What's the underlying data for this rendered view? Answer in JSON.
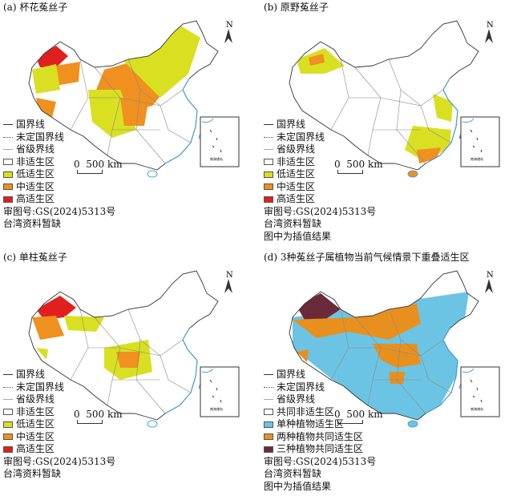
{
  "panels": [
    {
      "title": "(a) 杯花菟丝子",
      "legend": [
        "国界线",
        "未定国界线",
        "省级界线",
        "非适生区",
        "低适生区",
        "中适生区",
        "高适生区"
      ],
      "notes": [
        "审图号:GS(2024)5313号",
        "台湾资料暂缺"
      ]
    },
    {
      "title": "(b) 原野菟丝子",
      "legend": [
        "国界线",
        "未定国界线",
        "省级界线",
        "非适生区",
        "低适生区",
        "中适生区",
        "高适生区"
      ],
      "notes": [
        "审图号:GS(2024)5313号",
        "台湾资料暂缺",
        "图中为插值结果"
      ]
    },
    {
      "title": "(c) 单柱菟丝子",
      "legend": [
        "国界线",
        "未定国界线",
        "省级界线",
        "非适生区",
        "低适生区",
        "中适生区",
        "高适生区"
      ],
      "notes": [
        "审图号:GS(2024)5313号",
        "台湾资料暂缺"
      ]
    },
    {
      "title": "(d) 3种菟丝子属植物当前气候情景下重叠适生区",
      "legend": [
        "国界线",
        "未定国界线",
        "省级界线",
        "共同非适生区",
        "单种植物适生区",
        "两种植物共同适生区",
        "三种植物共同适生区"
      ],
      "notes": [
        "审图号:GS(2024)5313号",
        "台湾资料暂缺",
        "图中为插值结果"
      ]
    }
  ],
  "scale_bar": {
    "zero": "0",
    "distance": "500 km"
  },
  "north_arrow": "N",
  "inset_label": "南海诸岛",
  "colors": {
    "non": "#ffffff",
    "low": "#d9e021",
    "mid": "#f0901e",
    "high": "#e0201e",
    "single": "#6cc4e4",
    "two": "#e8901e",
    "three": "#6b2a3a"
  }
}
